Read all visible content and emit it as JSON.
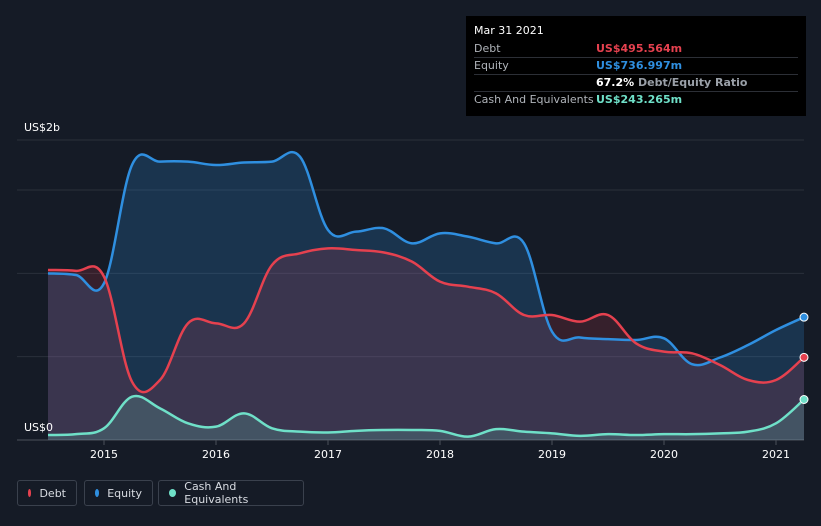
{
  "tooltip": {
    "date": "Mar 31 2021",
    "rows": [
      {
        "label": "Debt",
        "value": "US$495.564m",
        "color": "#e5414f"
      },
      {
        "label": "Equity",
        "value": "US$736.997m",
        "color": "#2f8fe0"
      },
      {
        "label": "",
        "value": "67.2%",
        "suffix": "Debt/Equity Ratio"
      },
      {
        "label": "Cash And Equivalents",
        "value": "US$243.265m",
        "color": "#6fe0c8"
      }
    ]
  },
  "legend": [
    {
      "label": "Debt",
      "color": "#e5414f"
    },
    {
      "label": "Equity",
      "color": "#2f8fe0"
    },
    {
      "label": "Cash And Equivalents",
      "color": "#6fe0c8"
    }
  ],
  "chart_data": {
    "type": "area",
    "y_top_label": "US$2b",
    "y_bottom_label": "US$0",
    "ylim": [
      0,
      1800
    ],
    "x_ticks": [
      "2015",
      "2016",
      "2017",
      "2018",
      "2019",
      "2020",
      "2021"
    ],
    "xlim": [
      2014.5,
      2021.25
    ],
    "series": [
      {
        "name": "Equity",
        "color": "#2f8fe0",
        "x": [
          2014.5,
          2014.75,
          2015.0,
          2015.25,
          2015.5,
          2015.75,
          2016.0,
          2016.25,
          2016.5,
          2016.75,
          2017.0,
          2017.25,
          2017.5,
          2017.75,
          2018.0,
          2018.25,
          2018.5,
          2018.75,
          2019.0,
          2019.25,
          2019.5,
          2019.75,
          2020.0,
          2020.25,
          2020.5,
          2020.75,
          2021.0,
          2021.25
        ],
        "values": [
          1000,
          990,
          940,
          1650,
          1670,
          1670,
          1650,
          1665,
          1670,
          1700,
          1260,
          1250,
          1270,
          1180,
          1240,
          1220,
          1180,
          1180,
          650,
          615,
          605,
          600,
          610,
          455,
          495,
          570,
          660,
          737
        ]
      },
      {
        "name": "Debt",
        "color": "#e5414f",
        "x": [
          2014.5,
          2014.75,
          2015.0,
          2015.25,
          2015.5,
          2015.75,
          2016.0,
          2016.25,
          2016.5,
          2016.75,
          2017.0,
          2017.25,
          2017.5,
          2017.75,
          2018.0,
          2018.25,
          2018.5,
          2018.75,
          2019.0,
          2019.25,
          2019.5,
          2019.75,
          2020.0,
          2020.25,
          2020.5,
          2020.75,
          2021.0,
          2021.25
        ],
        "values": [
          1020,
          1015,
          980,
          350,
          360,
          700,
          700,
          700,
          1050,
          1120,
          1150,
          1140,
          1125,
          1070,
          950,
          920,
          880,
          750,
          750,
          710,
          750,
          580,
          530,
          520,
          450,
          360,
          360,
          496
        ]
      },
      {
        "name": "Cash And Equivalents",
        "color": "#6fe0c8",
        "x": [
          2014.5,
          2014.75,
          2015.0,
          2015.25,
          2015.5,
          2015.75,
          2016.0,
          2016.25,
          2016.5,
          2016.75,
          2017.0,
          2017.25,
          2017.5,
          2017.75,
          2018.0,
          2018.25,
          2018.5,
          2018.75,
          2019.0,
          2019.25,
          2019.5,
          2019.75,
          2020.0,
          2020.25,
          2020.5,
          2020.75,
          2021.0,
          2021.25
        ],
        "values": [
          30,
          35,
          70,
          260,
          190,
          100,
          80,
          160,
          70,
          50,
          45,
          55,
          60,
          60,
          55,
          20,
          65,
          50,
          40,
          25,
          35,
          30,
          35,
          35,
          40,
          50,
          100,
          243
        ]
      }
    ]
  }
}
